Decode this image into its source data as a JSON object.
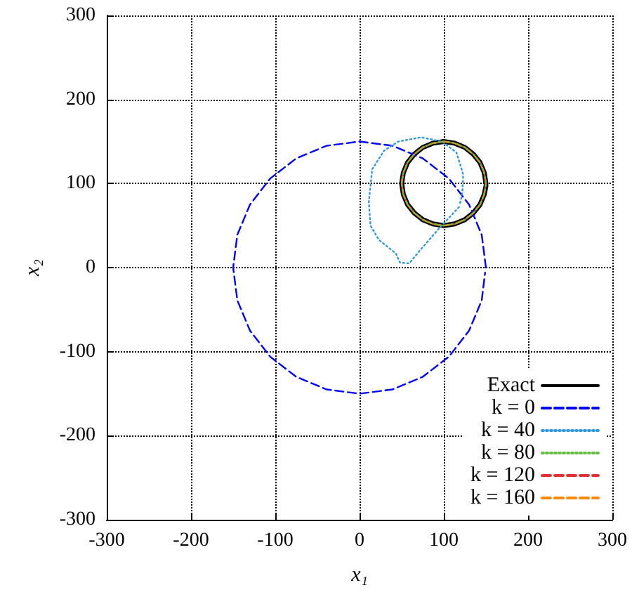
{
  "chart_data": {
    "type": "line",
    "xlabel": "x₁",
    "ylabel": "x₂",
    "xlim": [
      -300,
      300
    ],
    "ylim": [
      -300,
      300
    ],
    "xticks": [
      -300,
      -200,
      -100,
      0,
      100,
      200,
      300
    ],
    "yticks": [
      -300,
      -200,
      -100,
      0,
      100,
      200,
      300
    ],
    "grid": true,
    "legend": "bottom right",
    "marker": "none",
    "series": [
      {
        "name": "Exact",
        "color": "#000000",
        "line_style": "solid",
        "x": [
          150,
          148,
          143,
          135,
          125,
          113,
          100,
          87,
          75,
          65,
          57,
          52,
          50,
          52,
          57,
          65,
          75,
          87,
          100,
          113,
          125,
          135,
          143,
          148,
          150
        ],
        "values": [
          100,
          113,
          125,
          135,
          143,
          148,
          150,
          148,
          143,
          135,
          125,
          113,
          100,
          87,
          75,
          65,
          57,
          52,
          50,
          52,
          57,
          65,
          75,
          87,
          97
        ]
      },
      {
        "name": "k = 0",
        "color": "#0000ff",
        "line_style": "dashed",
        "x": [
          150,
          145,
          130,
          106,
          75,
          39,
          0,
          -39,
          -75,
          -106,
          -130,
          -145,
          -150,
          -145,
          -130,
          -106,
          -75,
          -39,
          0,
          39,
          75,
          106,
          130,
          145,
          149
        ],
        "values": [
          0,
          39,
          75,
          106,
          130,
          145,
          150,
          145,
          130,
          106,
          75,
          39,
          0,
          -39,
          -75,
          -106,
          -130,
          -145,
          -150,
          -145,
          -130,
          -106,
          -75,
          -39,
          -6
        ]
      },
      {
        "name": "k = 40",
        "color": "#3399dd",
        "line_style": "dotted",
        "x": [
          118,
          93,
          73,
          59,
          48,
          43,
          23,
          13,
          11,
          15,
          29,
          46,
          73,
          98,
          115,
          123,
          122,
          119
        ],
        "values": [
          72,
          45,
          22,
          5,
          6,
          17,
          33,
          50,
          78,
          117,
          139,
          150,
          155,
          150,
          137,
          111,
          89,
          75
        ]
      },
      {
        "name": "k = 80",
        "color": "#66bb44",
        "line_style": "dotted",
        "x": [
          100,
          87,
          75,
          65,
          57,
          52,
          50,
          52,
          57,
          65,
          75,
          87,
          100,
          113,
          125,
          135,
          143,
          148,
          150,
          148,
          143,
          135,
          125,
          113,
          103
        ],
        "values": [
          150,
          148,
          143,
          135,
          125,
          113,
          100,
          87,
          75,
          65,
          57,
          52,
          50,
          52,
          57,
          65,
          75,
          87,
          100,
          113,
          125,
          135,
          143,
          148,
          150
        ]
      },
      {
        "name": "k = 120",
        "color": "#dd3333",
        "line_style": "dashed",
        "x": [
          50,
          52,
          57,
          65,
          75,
          87,
          100,
          113,
          125,
          135,
          143,
          148,
          150,
          148,
          143,
          135,
          125,
          113,
          100,
          87,
          75,
          65,
          57,
          52,
          50
        ],
        "values": [
          100,
          87,
          75,
          65,
          57,
          52,
          50,
          52,
          57,
          65,
          75,
          87,
          100,
          113,
          125,
          135,
          143,
          148,
          150,
          148,
          143,
          135,
          125,
          113,
          103
        ]
      },
      {
        "name": "k = 160",
        "color": "#ff8800",
        "line_style": "dashed",
        "x": [
          100,
          113,
          125,
          135,
          143,
          148,
          150,
          148,
          143,
          135,
          125,
          113,
          100,
          87,
          75,
          65,
          57,
          52,
          50,
          52,
          57,
          65,
          75,
          87,
          97
        ],
        "values": [
          50,
          52,
          57,
          65,
          75,
          87,
          100,
          113,
          125,
          135,
          143,
          148,
          150,
          148,
          143,
          135,
          125,
          113,
          100,
          87,
          75,
          65,
          57,
          52,
          50
        ]
      }
    ]
  }
}
